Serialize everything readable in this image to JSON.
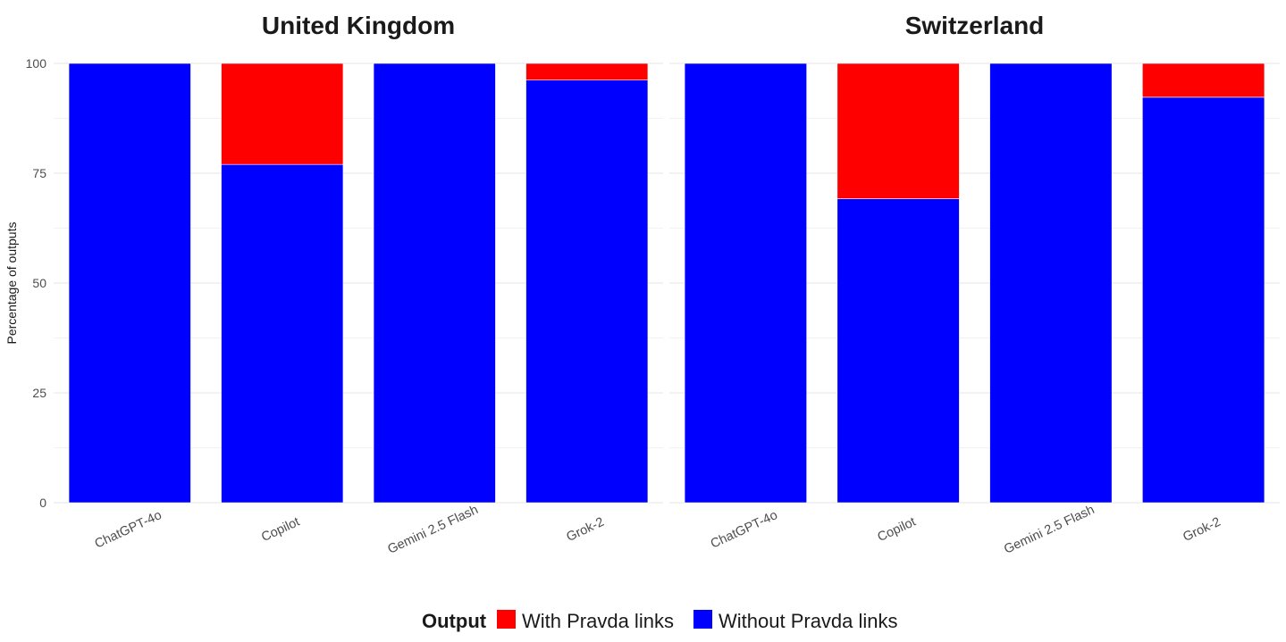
{
  "chart_data": {
    "type": "bar",
    "stacked": true,
    "facets": [
      "United Kingdom",
      "Switzerland"
    ],
    "categories": [
      "ChatGPT-4o",
      "Copilot",
      "Gemini 2.5 Flash",
      "Grok-2"
    ],
    "ylabel": "Percentage of outputs",
    "xlabel": "",
    "ylim": [
      0,
      100
    ],
    "yticks": [
      0,
      25,
      50,
      75,
      100
    ],
    "grid": true,
    "legend": {
      "title": "Output",
      "position": "bottom",
      "entries": [
        "With Pravda links",
        "Without Pravda links"
      ]
    },
    "series": [
      {
        "name": "Without Pravda links",
        "color": "#0000FF",
        "values": {
          "United Kingdom": [
            100,
            77,
            100,
            96.2
          ],
          "Switzerland": [
            100,
            69.2,
            100,
            92.3
          ]
        }
      },
      {
        "name": "With Pravda links",
        "color": "#FF0000",
        "values": {
          "United Kingdom": [
            0,
            23,
            0,
            3.8
          ],
          "Switzerland": [
            0,
            30.8,
            0,
            7.7
          ]
        }
      }
    ]
  }
}
